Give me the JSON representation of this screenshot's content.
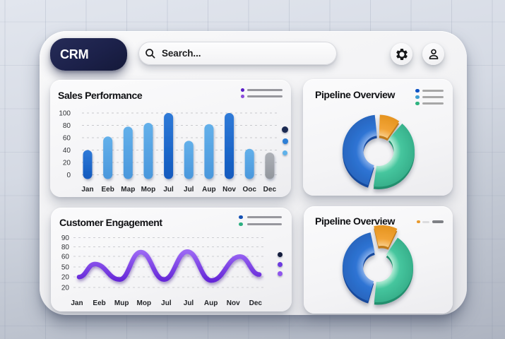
{
  "header": {
    "logo_text": "CRM",
    "search_placeholder": "Search...",
    "icons": [
      "gear",
      "user"
    ]
  },
  "panels": [
    {
      "title": "Sales Performance",
      "menu_icon": {
        "rows": [
          {
            "dot": "#5a1ec8",
            "line": "#97979d"
          },
          {
            "dot": "#8a4bda",
            "line": "#97979d"
          }
        ]
      },
      "side_dots": [
        {
          "color": "#1b2a52",
          "size": 9
        },
        {
          "color": "#2e7fd6",
          "size": 8
        },
        {
          "color": "#5fb2ea",
          "size": 7
        }
      ]
    },
    {
      "title": "Pipeline Overview",
      "menu_icon": {
        "rows": [
          {
            "dot": "#0d52c4",
            "line": "#a7a7a7"
          },
          {
            "dot": "#3f9fd0",
            "line": "#a7a7a7"
          },
          {
            "dot": "#2eb380",
            "line": "#a7a7a7"
          }
        ]
      },
      "side_dots": []
    },
    {
      "title": "Customer Engagement",
      "menu_icon": {
        "rows": [
          {
            "dot": "#1450b4",
            "line": "#97979d"
          },
          {
            "dot": "#2daf82",
            "line": "#97979d"
          }
        ]
      },
      "side_dots": [
        {
          "color": "#131c3c",
          "size": 7
        },
        {
          "color": "#6d3be0",
          "size": 7
        },
        {
          "color": "#8f55ee",
          "size": 7
        }
      ]
    },
    {
      "title": "Pipeline Overview",
      "menu_icon": {
        "rows": [
          {
            "dot": "#e89a2e",
            "line": "#dcdcde",
            "line2": "#7e8085"
          }
        ]
      },
      "side_dots": []
    }
  ],
  "chart_data": [
    {
      "type": "bar",
      "title": "Sales Performance",
      "categories": [
        "Jan",
        "Eeb",
        "Map",
        "Mop",
        "Jul",
        "Jul",
        "Aup",
        "Nov",
        "Ooc",
        "Dec"
      ],
      "values": [
        40,
        62,
        78,
        84,
        100,
        55,
        82,
        100,
        42,
        36
      ],
      "bar_colors": [
        "dark",
        "light",
        "light",
        "light",
        "dark",
        "light",
        "light",
        "dark",
        "light",
        "gray"
      ],
      "y_ticks": [
        100,
        80,
        60,
        40,
        20,
        0
      ],
      "ylim": [
        0,
        100
      ],
      "grid": "dashed",
      "palette": {
        "dark": "#1d66cc",
        "light": "#58a9e6",
        "gray": "#a4a8ae"
      }
    },
    {
      "type": "donut",
      "title": "Pipeline Overview",
      "segments": [
        {
          "name": "blue",
          "color": "#2e74d4",
          "start_deg": 197,
          "end_deg": 354,
          "share_pct": 44
        },
        {
          "name": "orange",
          "color": "#f0a437",
          "start_deg": 2,
          "end_deg": 35,
          "share_pct": 9
        },
        {
          "name": "green",
          "color": "#43c29b",
          "start_deg": 41,
          "end_deg": 188,
          "share_pct": 41
        }
      ],
      "exploded_segment": null
    },
    {
      "type": "line",
      "title": "Customer Engagement",
      "x_labels": [
        "Jan",
        "Eeb",
        "Mup",
        "Mop",
        "Jul",
        "Jul",
        "Aup",
        "Nov",
        "Dec"
      ],
      "y_tick_labels": [
        "90",
        "80",
        "60",
        "50",
        "20",
        "20"
      ],
      "line_color": "#7c3aed",
      "grid": "dashed",
      "points": [
        {
          "x": 0.015,
          "y": 21
        },
        {
          "x": 0.1,
          "y": 47
        },
        {
          "x": 0.233,
          "y": 16
        },
        {
          "x": 0.347,
          "y": 71
        },
        {
          "x": 0.472,
          "y": 16
        },
        {
          "x": 0.598,
          "y": 72
        },
        {
          "x": 0.727,
          "y": 14
        },
        {
          "x": 0.882,
          "y": 62
        },
        {
          "x": 0.985,
          "y": 26
        }
      ],
      "y_scale": [
        0,
        100
      ]
    },
    {
      "type": "donut",
      "title": "Pipeline Overview",
      "segments": [
        {
          "name": "blue",
          "color": "#2e74d4",
          "start_deg": 196,
          "end_deg": 348,
          "share_pct": 42
        },
        {
          "name": "orange",
          "color": "#f0a437",
          "start_deg": 347,
          "end_deg": 386,
          "share_pct": 10,
          "exploded": true
        },
        {
          "name": "green",
          "color": "#43c29b",
          "start_deg": 34,
          "end_deg": 186,
          "share_pct": 42
        }
      ],
      "exploded_segment": "orange"
    }
  ]
}
